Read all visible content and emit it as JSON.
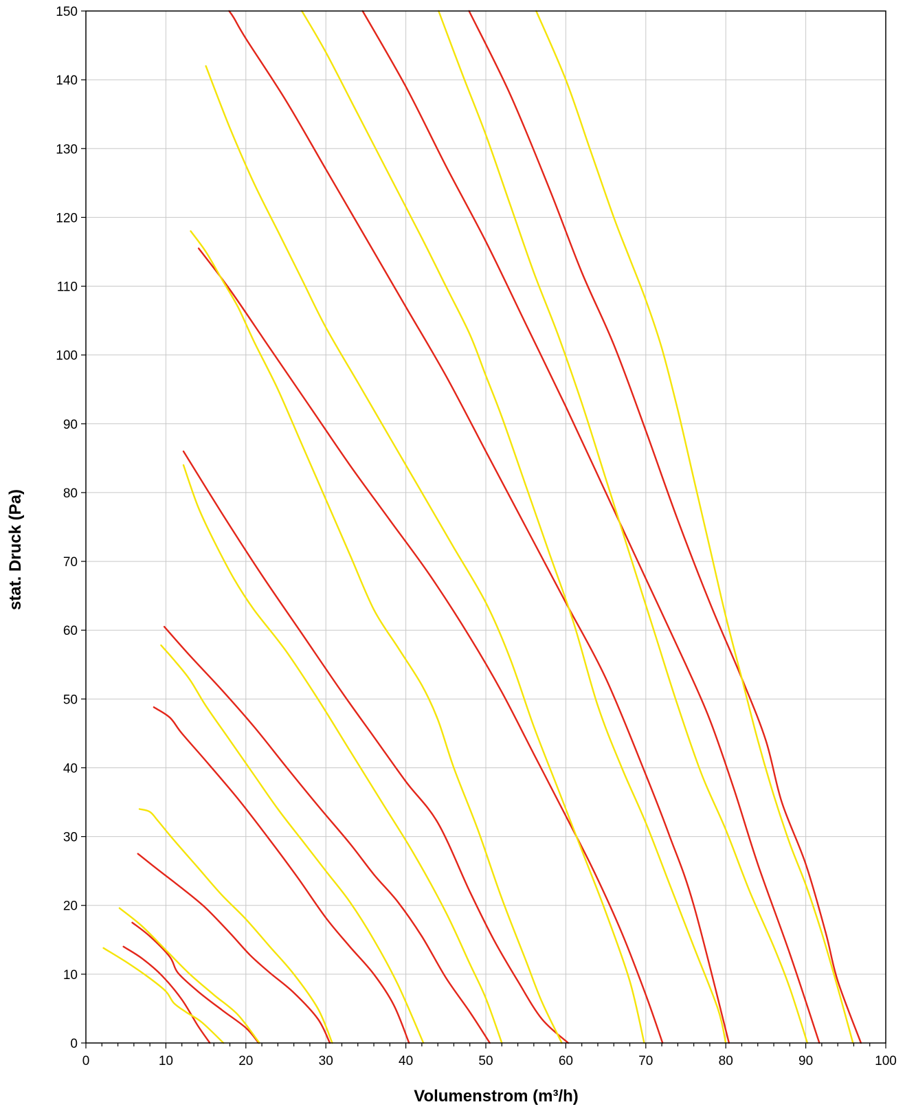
{
  "chart_data": {
    "type": "line",
    "title": "",
    "xlabel": "Volumenstrom (m³/h)",
    "ylabel": "stat. Druck (Pa)",
    "xlim": [
      0,
      100
    ],
    "ylim": [
      0,
      150
    ],
    "x_ticks": [
      "0",
      "10",
      "20",
      "30",
      "40",
      "50",
      "60",
      "70",
      "80",
      "90",
      "100"
    ],
    "y_ticks": [
      "0",
      "10",
      "20",
      "30",
      "40",
      "50",
      "60",
      "70",
      "80",
      "90",
      "100",
      "110",
      "120",
      "130",
      "140",
      "150"
    ],
    "grid": true,
    "legend": "none",
    "colors": {
      "red": "#e3261a",
      "yellow": "#f5e40a"
    },
    "series": [
      {
        "color": "red",
        "points": [
          [
            4.7,
            14
          ],
          [
            7,
            12.3
          ],
          [
            9.5,
            9.8
          ],
          [
            12,
            6.3
          ],
          [
            14,
            2.5
          ],
          [
            15.5,
            0
          ]
        ]
      },
      {
        "color": "red",
        "points": [
          [
            5.8,
            17.5
          ],
          [
            8,
            15.5
          ],
          [
            10.5,
            12.5
          ],
          [
            11.5,
            10.2
          ],
          [
            14,
            7.5
          ],
          [
            17,
            4.8
          ],
          [
            20,
            2.2
          ],
          [
            21.6,
            0
          ]
        ]
      },
      {
        "color": "red",
        "points": [
          [
            6.5,
            27.5
          ],
          [
            9,
            25.2
          ],
          [
            12,
            22.5
          ],
          [
            15,
            19.6
          ],
          [
            18,
            16
          ],
          [
            20.5,
            12.8
          ],
          [
            23,
            10.2
          ],
          [
            26,
            7.3
          ],
          [
            29,
            3.5
          ],
          [
            30.5,
            0
          ]
        ]
      },
      {
        "color": "red",
        "points": [
          [
            8.5,
            48.8
          ],
          [
            10.5,
            47.3
          ],
          [
            12,
            45
          ],
          [
            15,
            41
          ],
          [
            19,
            35.5
          ],
          [
            23,
            29.5
          ],
          [
            26.5,
            24
          ],
          [
            30,
            18.2
          ],
          [
            33,
            14
          ],
          [
            36,
            10
          ],
          [
            38.5,
            5.5
          ],
          [
            40.4,
            0
          ]
        ]
      },
      {
        "color": "red",
        "points": [
          [
            9.8,
            60.5
          ],
          [
            13,
            56.3
          ],
          [
            17,
            51.3
          ],
          [
            21,
            46
          ],
          [
            25,
            40.2
          ],
          [
            29,
            34.5
          ],
          [
            33,
            29
          ],
          [
            36,
            24.5
          ],
          [
            39,
            20.5
          ],
          [
            42,
            15.5
          ],
          [
            45,
            9.5
          ],
          [
            48,
            4.5
          ],
          [
            50.5,
            0
          ]
        ]
      },
      {
        "color": "red",
        "points": [
          [
            12.2,
            86
          ],
          [
            17,
            77
          ],
          [
            22,
            68
          ],
          [
            27,
            59.5
          ],
          [
            32,
            51
          ],
          [
            36,
            44.5
          ],
          [
            40,
            38
          ],
          [
            44,
            32
          ],
          [
            48,
            22
          ],
          [
            51,
            15
          ],
          [
            54,
            9
          ],
          [
            57,
            3.5
          ],
          [
            60.3,
            0
          ]
        ]
      },
      {
        "color": "red",
        "points": [
          [
            14.1,
            115.5
          ],
          [
            18,
            109.5
          ],
          [
            23,
            101
          ],
          [
            28,
            92.5
          ],
          [
            33,
            84
          ],
          [
            38,
            76
          ],
          [
            43,
            68
          ],
          [
            48,
            59
          ],
          [
            52,
            51
          ],
          [
            56,
            42
          ],
          [
            60,
            33
          ],
          [
            63.5,
            25
          ],
          [
            67,
            16
          ],
          [
            70,
            7
          ],
          [
            72.1,
            0
          ]
        ]
      },
      {
        "color": "red",
        "points": [
          [
            17.9,
            150
          ],
          [
            18.5,
            149
          ],
          [
            20,
            146
          ],
          [
            25,
            137
          ],
          [
            30,
            127
          ],
          [
            35,
            117
          ],
          [
            40,
            107
          ],
          [
            45,
            97
          ],
          [
            50,
            86
          ],
          [
            55,
            75
          ],
          [
            60,
            64
          ],
          [
            65,
            53
          ],
          [
            70,
            39
          ],
          [
            73,
            30
          ],
          [
            76,
            20
          ],
          [
            80.4,
            0
          ]
        ]
      },
      {
        "color": "red",
        "points": [
          [
            34.6,
            150
          ],
          [
            40,
            139
          ],
          [
            45,
            127.5
          ],
          [
            50,
            116.5
          ],
          [
            55,
            104.5
          ],
          [
            60,
            92.5
          ],
          [
            65,
            80
          ],
          [
            70,
            67.5
          ],
          [
            75,
            55
          ],
          [
            78,
            47
          ],
          [
            81,
            37
          ],
          [
            84,
            26
          ],
          [
            88,
            13
          ],
          [
            91.7,
            0
          ]
        ]
      },
      {
        "color": "red",
        "points": [
          [
            47.9,
            150
          ],
          [
            53,
            138
          ],
          [
            58,
            124
          ],
          [
            62,
            112
          ],
          [
            66,
            101.5
          ],
          [
            70,
            89
          ],
          [
            74,
            76
          ],
          [
            78,
            64
          ],
          [
            82,
            53
          ],
          [
            85,
            44
          ],
          [
            87,
            35
          ],
          [
            90,
            26
          ],
          [
            92.5,
            16
          ],
          [
            94,
            9
          ],
          [
            96.9,
            0
          ]
        ]
      },
      {
        "color": "yellow",
        "points": [
          [
            2.2,
            13.8
          ],
          [
            5,
            11.8
          ],
          [
            8,
            9.4
          ],
          [
            10,
            7.5
          ],
          [
            11,
            5.8
          ],
          [
            12.5,
            4.5
          ],
          [
            14.5,
            3
          ],
          [
            17.2,
            0
          ]
        ]
      },
      {
        "color": "yellow",
        "points": [
          [
            4.2,
            19.6
          ],
          [
            7,
            17
          ],
          [
            10,
            13.5
          ],
          [
            13,
            10
          ],
          [
            16,
            7
          ],
          [
            19,
            4.1
          ],
          [
            21.7,
            0
          ]
        ]
      },
      {
        "color": "yellow",
        "points": [
          [
            6.7,
            34
          ],
          [
            8,
            33.6
          ],
          [
            9,
            32.3
          ],
          [
            11,
            29.5
          ],
          [
            14,
            25.5
          ],
          [
            17,
            21.5
          ],
          [
            20,
            18
          ],
          [
            23,
            14
          ],
          [
            26,
            10
          ],
          [
            29,
            5
          ],
          [
            30.8,
            0
          ]
        ]
      },
      {
        "color": "yellow",
        "points": [
          [
            9.4,
            57.8
          ],
          [
            11,
            55.7
          ],
          [
            13,
            52.8
          ],
          [
            15,
            49
          ],
          [
            18,
            44
          ],
          [
            21,
            39
          ],
          [
            24,
            34
          ],
          [
            27,
            29.5
          ],
          [
            30,
            25
          ],
          [
            33,
            20.5
          ],
          [
            36,
            15
          ],
          [
            39,
            8.5
          ],
          [
            42.2,
            0
          ]
        ]
      },
      {
        "color": "yellow",
        "points": [
          [
            12.2,
            84
          ],
          [
            14,
            78
          ],
          [
            16,
            73
          ],
          [
            18.5,
            67.5
          ],
          [
            21,
            63
          ],
          [
            25,
            57
          ],
          [
            29,
            50
          ],
          [
            33,
            42.5
          ],
          [
            37,
            35
          ],
          [
            41,
            27.5
          ],
          [
            45,
            19
          ],
          [
            48,
            11.5
          ],
          [
            50,
            6.5
          ],
          [
            52,
            0
          ]
        ]
      },
      {
        "color": "yellow",
        "points": [
          [
            13.1,
            118
          ],
          [
            15,
            115
          ],
          [
            17,
            111
          ],
          [
            19,
            107
          ],
          [
            21,
            102
          ],
          [
            24,
            95
          ],
          [
            27,
            87
          ],
          [
            30,
            79
          ],
          [
            33,
            71
          ],
          [
            36,
            63
          ],
          [
            39,
            57.5
          ],
          [
            42,
            52
          ],
          [
            44,
            47
          ],
          [
            46,
            40
          ],
          [
            49,
            31
          ],
          [
            52,
            21
          ],
          [
            55,
            12
          ],
          [
            57,
            6
          ],
          [
            59.5,
            0
          ]
        ]
      },
      {
        "color": "yellow",
        "points": [
          [
            15,
            142
          ],
          [
            18,
            133
          ],
          [
            21,
            125
          ],
          [
            24,
            118
          ],
          [
            27,
            111
          ],
          [
            30,
            104
          ],
          [
            34,
            96
          ],
          [
            38,
            88
          ],
          [
            42,
            80
          ],
          [
            46,
            72
          ],
          [
            50,
            64
          ],
          [
            53,
            56
          ],
          [
            56,
            46
          ],
          [
            59,
            37
          ],
          [
            62,
            28
          ],
          [
            65,
            19
          ],
          [
            68,
            9
          ],
          [
            69.8,
            0
          ]
        ]
      },
      {
        "color": "yellow",
        "points": [
          [
            27,
            150
          ],
          [
            30,
            144
          ],
          [
            34,
            135
          ],
          [
            38,
            126
          ],
          [
            42,
            117
          ],
          [
            45,
            110
          ],
          [
            48,
            103
          ],
          [
            50,
            97
          ],
          [
            52,
            91
          ],
          [
            55,
            81
          ],
          [
            58,
            71
          ],
          [
            61,
            61
          ],
          [
            64,
            49
          ],
          [
            67,
            40
          ],
          [
            70,
            32
          ],
          [
            73,
            23
          ],
          [
            76,
            14
          ],
          [
            79,
            5
          ],
          [
            80,
            0
          ]
        ]
      },
      {
        "color": "yellow",
        "points": [
          [
            44.1,
            150
          ],
          [
            47,
            141
          ],
          [
            50,
            132
          ],
          [
            53,
            122
          ],
          [
            56,
            112
          ],
          [
            59,
            103
          ],
          [
            62,
            93
          ],
          [
            65,
            82
          ],
          [
            68,
            71
          ],
          [
            71,
            60
          ],
          [
            74,
            49
          ],
          [
            77,
            39
          ],
          [
            80,
            31
          ],
          [
            83,
            22
          ],
          [
            86,
            14
          ],
          [
            88,
            8
          ],
          [
            90.2,
            0
          ]
        ]
      },
      {
        "color": "yellow",
        "points": [
          [
            56.3,
            150
          ],
          [
            60,
            140
          ],
          [
            63,
            130
          ],
          [
            66,
            120
          ],
          [
            68,
            114
          ],
          [
            70,
            108
          ],
          [
            72,
            101
          ],
          [
            74,
            92
          ],
          [
            76,
            82
          ],
          [
            78,
            72
          ],
          [
            80,
            62
          ],
          [
            82,
            53
          ],
          [
            84,
            44
          ],
          [
            86,
            36
          ],
          [
            88,
            29
          ],
          [
            90,
            23
          ],
          [
            92,
            16
          ],
          [
            94,
            8
          ],
          [
            95.9,
            0
          ]
        ]
      }
    ]
  }
}
